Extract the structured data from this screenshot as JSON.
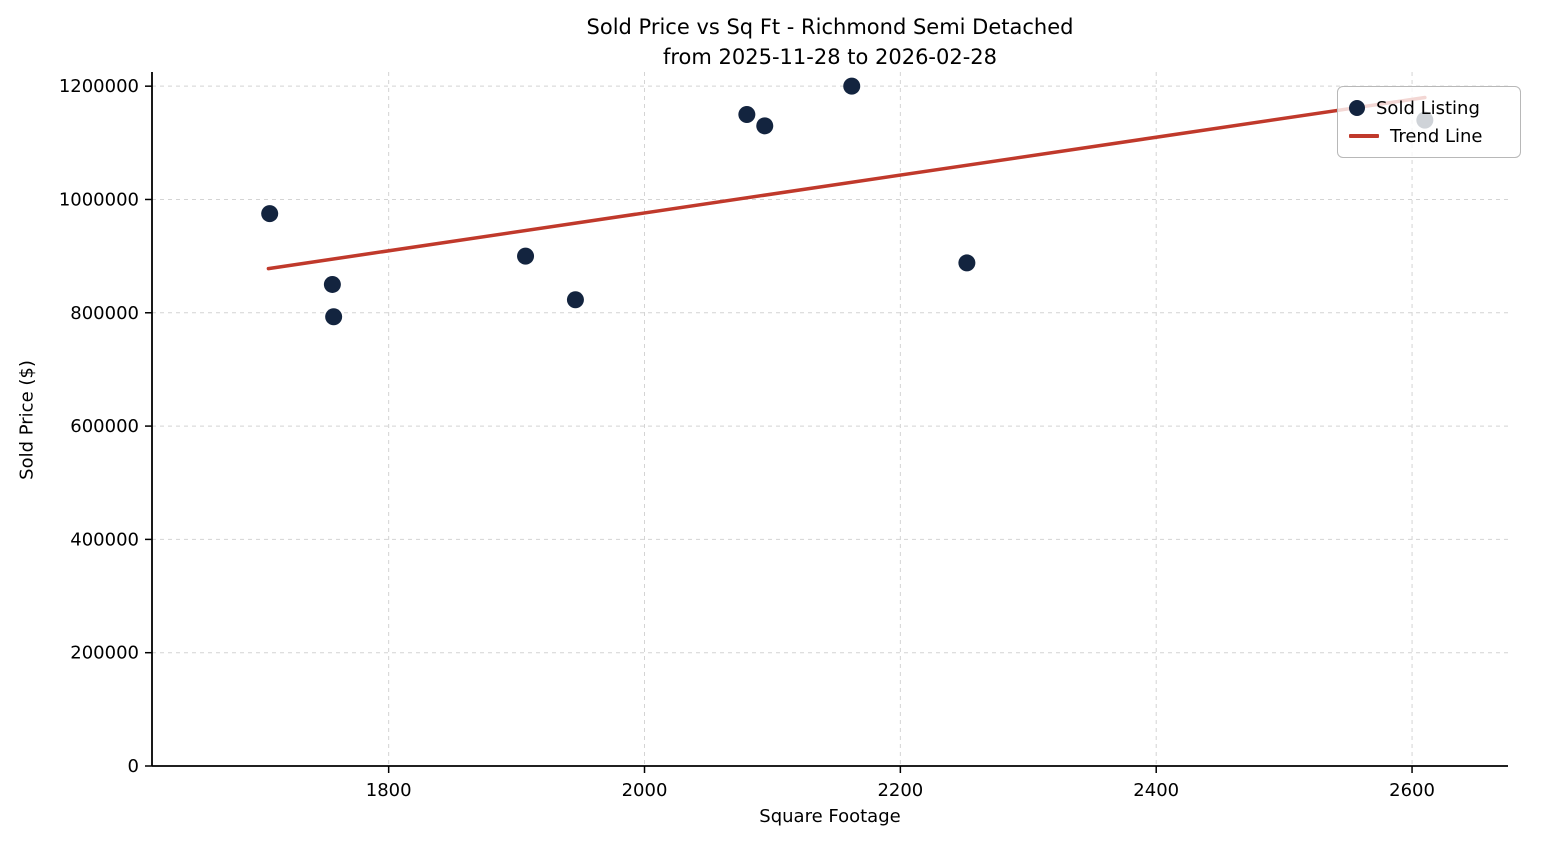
{
  "chart": {
    "title_line1": "Sold Price vs Sq Ft - Richmond Semi Detached",
    "title_line2": "from 2025-11-28 to 2026-02-28",
    "xlabel": "Square Footage",
    "ylabel": "Sold Price ($)",
    "legend": [
      {
        "label": "Sold Listing",
        "marker": "dot"
      },
      {
        "label": "Trend Line",
        "marker": "line"
      }
    ]
  },
  "colors": {
    "point": "#13243f",
    "trend": "#c0392b",
    "grid": "#d4d4d4",
    "spine": "#000000",
    "legend_border": "#b8b8b8"
  },
  "chart_data": {
    "type": "scatter",
    "title": "Sold Price vs Sq Ft - Richmond Semi Detached\nfrom 2025-11-28 to 2026-02-28",
    "xlabel": "Square Footage",
    "ylabel": "Sold Price ($)",
    "xlim": [
      1615,
      2675
    ],
    "ylim": [
      0,
      1225000
    ],
    "xticks": [
      1800,
      2000,
      2200,
      2400,
      2600
    ],
    "yticks": [
      0,
      200000,
      400000,
      600000,
      800000,
      1000000,
      1200000
    ],
    "grid": true,
    "legend_position": "upper right",
    "series": [
      {
        "name": "Sold Listing",
        "type": "scatter",
        "color": "#13243f",
        "points": [
          [
            1707,
            975000
          ],
          [
            1756,
            850000
          ],
          [
            1757,
            793000
          ],
          [
            1907,
            900000
          ],
          [
            1946,
            823000
          ],
          [
            2080,
            1150000
          ],
          [
            2094,
            1130000
          ],
          [
            2162,
            1200000
          ],
          [
            2252,
            888000
          ],
          [
            2610,
            1140000
          ]
        ]
      },
      {
        "name": "Trend Line",
        "type": "line",
        "color": "#c0392b",
        "points": [
          [
            1706,
            878000
          ],
          [
            2610,
            1180000
          ]
        ]
      }
    ]
  }
}
